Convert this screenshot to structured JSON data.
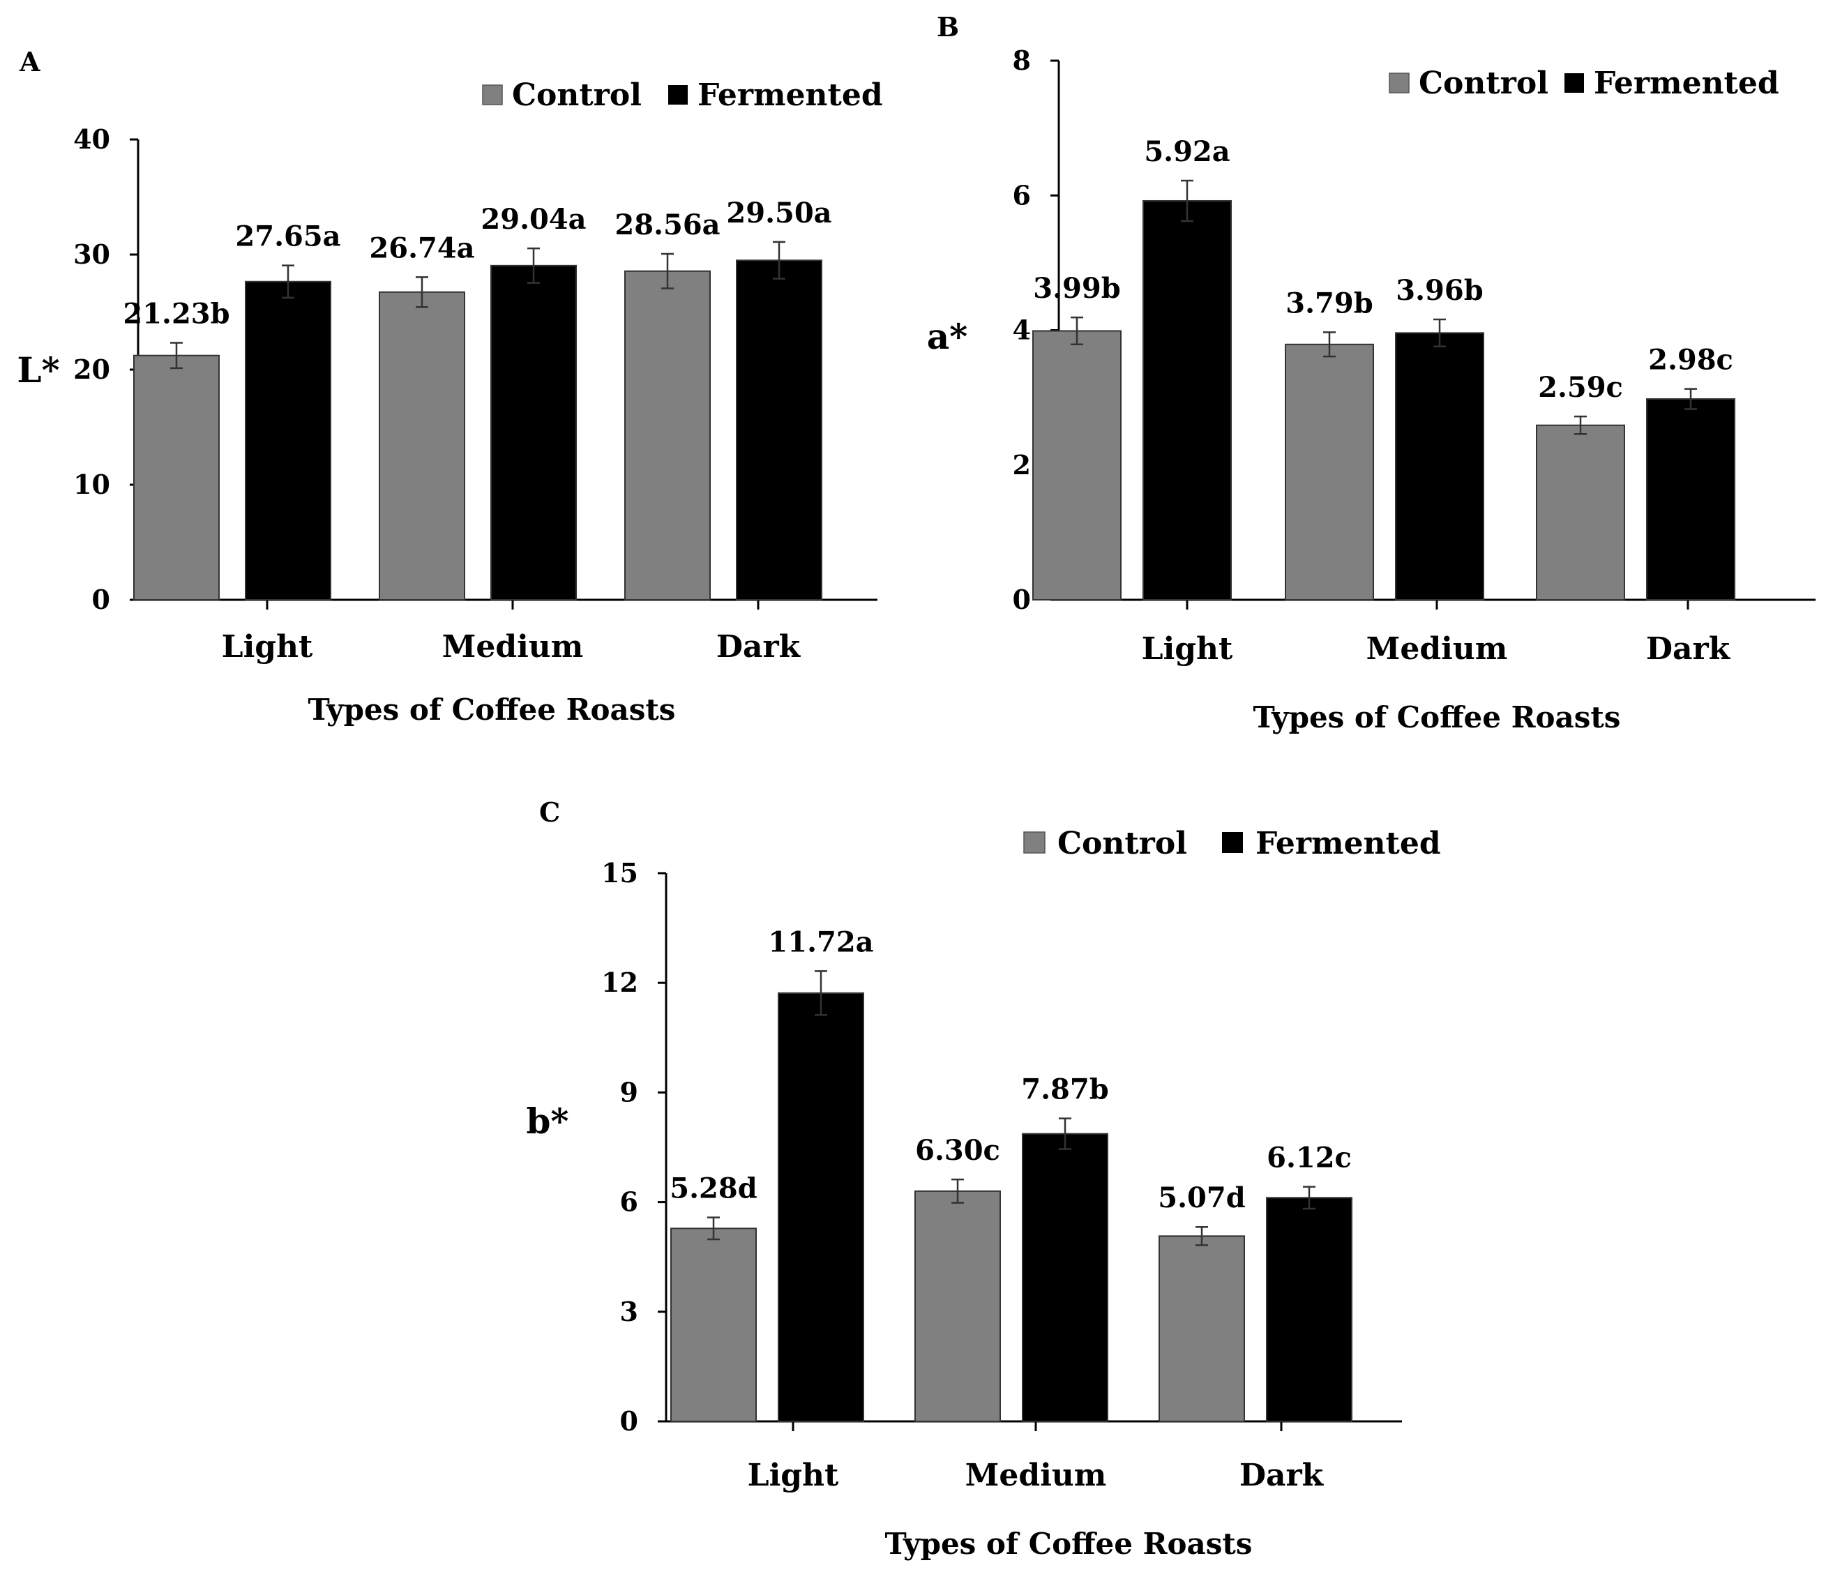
{
  "chart_data": [
    {
      "panel": "A",
      "type": "bar",
      "categories": [
        "Light",
        "Medium",
        "Dark"
      ],
      "series": [
        {
          "name": "Control",
          "color": "#808080",
          "values": [
            21.23,
            26.74,
            28.56
          ],
          "errors": [
            1.1,
            1.3,
            1.5
          ],
          "labels": [
            "21.23b",
            "26.74a",
            "28.56a"
          ]
        },
        {
          "name": "Fermented",
          "color": "#000000",
          "values": [
            27.65,
            29.04,
            29.5
          ],
          "errors": [
            1.4,
            1.5,
            1.6
          ],
          "labels": [
            "27.65a",
            "29.04a",
            "29.50a"
          ]
        }
      ],
      "xlabel": "Types of Coffee Roasts",
      "ylabel": "L*",
      "ylim": [
        0,
        40
      ],
      "yticks": [
        0,
        10,
        20,
        30,
        40
      ],
      "legend_position": "top-right"
    },
    {
      "panel": "B",
      "type": "bar",
      "categories": [
        "Light",
        "Medium",
        "Dark"
      ],
      "series": [
        {
          "name": "Control",
          "color": "#808080",
          "values": [
            3.99,
            3.79,
            2.59
          ],
          "errors": [
            0.2,
            0.18,
            0.13
          ],
          "labels": [
            "3.99b",
            "3.79b",
            "2.59c"
          ]
        },
        {
          "name": "Fermented",
          "color": "#000000",
          "values": [
            5.92,
            3.96,
            2.98
          ],
          "errors": [
            0.3,
            0.2,
            0.15
          ],
          "labels": [
            "5.92a",
            "3.96b",
            "2.98c"
          ]
        }
      ],
      "xlabel": "Types of Coffee Roasts",
      "ylabel": "a*",
      "ylim": [
        0,
        8
      ],
      "yticks": [
        0,
        2,
        4,
        6,
        8
      ],
      "legend_position": "top-right"
    },
    {
      "panel": "C",
      "type": "bar",
      "categories": [
        "Light",
        "Medium",
        "Dark"
      ],
      "series": [
        {
          "name": "Control",
          "color": "#808080",
          "values": [
            5.28,
            6.3,
            5.07
          ],
          "errors": [
            0.3,
            0.32,
            0.25
          ],
          "labels": [
            "5.28d",
            "6.30c",
            "5.07d"
          ]
        },
        {
          "name": "Fermented",
          "color": "#000000",
          "values": [
            11.72,
            7.87,
            6.12
          ],
          "errors": [
            0.6,
            0.42,
            0.3
          ],
          "labels": [
            "11.72a",
            "7.87b",
            "6.12c"
          ]
        }
      ],
      "xlabel": "Types of Coffee Roasts",
      "ylabel": "b*",
      "ylim": [
        0,
        15
      ],
      "yticks": [
        0,
        3,
        6,
        9,
        12,
        15
      ],
      "legend_position": "top"
    }
  ]
}
